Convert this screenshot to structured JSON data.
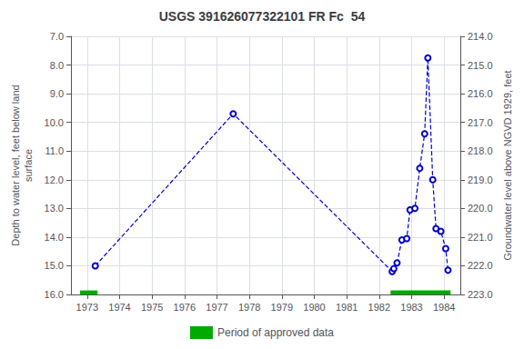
{
  "chart_data": {
    "type": "line",
    "title": "USGS 391626077322101 FR Fc  54",
    "ylabel": "Depth to water level, feet below land\nsurface",
    "y2label": "Groundwater level above NGVD 1929, feet",
    "xlim": [
      1972.5,
      1984.5
    ],
    "xticks": [
      1973,
      1974,
      1975,
      1976,
      1977,
      1978,
      1979,
      1980,
      1981,
      1982,
      1983,
      1984
    ],
    "ylim": [
      7.0,
      16.0
    ],
    "yticks": [
      {
        "value": 7.0,
        "label": "7.0"
      },
      {
        "value": 8.0,
        "label": "8.0"
      },
      {
        "value": 9.0,
        "label": "9.0"
      },
      {
        "value": 10.0,
        "label": "10.0"
      },
      {
        "value": 11.0,
        "label": "11.0"
      },
      {
        "value": 12.0,
        "label": "12.0"
      },
      {
        "value": 13.0,
        "label": "13.0"
      },
      {
        "value": 14.0,
        "label": "14.0"
      },
      {
        "value": 15.0,
        "label": "15.0"
      },
      {
        "value": 16.0,
        "label": "16.0"
      }
    ],
    "y2lim": [
      214.0,
      223.0
    ],
    "y2ticks": [
      {
        "value": 214.0,
        "label": "214.0"
      },
      {
        "value": 215.0,
        "label": "215.0"
      },
      {
        "value": 216.0,
        "label": "216.0"
      },
      {
        "value": 217.0,
        "label": "217.0"
      },
      {
        "value": 218.0,
        "label": "218.0"
      },
      {
        "value": 219.0,
        "label": "219.0"
      },
      {
        "value": 220.0,
        "label": "220.0"
      },
      {
        "value": 221.0,
        "label": "221.0"
      },
      {
        "value": 222.0,
        "label": "222.0"
      },
      {
        "value": 223.0,
        "label": "223.0"
      }
    ],
    "grid": true,
    "legend": "bottom",
    "x": [
      1973.25,
      1977.5,
      1982.4,
      1982.45,
      1982.55,
      1982.7,
      1982.85,
      1982.95,
      1983.1,
      1983.25,
      1983.4,
      1983.5,
      1983.65,
      1983.75,
      1983.9,
      1984.05,
      1984.12
    ],
    "series": [
      {
        "type": "line",
        "color": "#0000cc",
        "marker": "circle",
        "line_style": "dashed",
        "values": [
          15.0,
          9.7,
          15.2,
          15.1,
          14.9,
          14.1,
          14.05,
          13.05,
          13.0,
          11.6,
          10.4,
          7.75,
          12.0,
          13.7,
          13.8,
          14.4,
          15.15
        ]
      },
      {
        "type": "bar",
        "orientation": "horizontal",
        "name": "Period of approved data",
        "color": "#00aa00",
        "x_start": [
          1972.78,
          1982.35
        ],
        "x_end": [
          1973.32,
          1984.2
        ],
        "y": 15.93,
        "height": 0.14
      }
    ]
  }
}
